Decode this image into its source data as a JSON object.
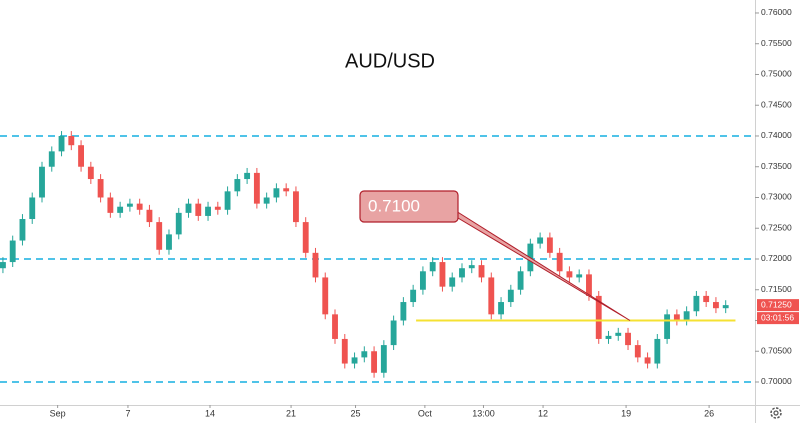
{
  "chart_data": {
    "type": "candlestick",
    "title": "AUD/USD",
    "open": [
      0.7185,
      0.7195,
      0.723,
      0.7265,
      0.73,
      0.735,
      0.7375,
      0.74,
      0.7385,
      0.735,
      0.733,
      0.73,
      0.7275,
      0.7285,
      0.729,
      0.728,
      0.726,
      0.7215,
      0.724,
      0.7275,
      0.729,
      0.727,
      0.7285,
      0.728,
      0.731,
      0.733,
      0.734,
      0.729,
      0.73,
      0.7315,
      0.731,
      0.726,
      0.721,
      0.717,
      0.711,
      0.707,
      0.703,
      0.704,
      0.705,
      0.7015,
      0.706,
      0.71,
      0.713,
      0.715,
      0.718,
      0.7195,
      0.7155,
      0.717,
      0.7185,
      0.719,
      0.717,
      0.711,
      0.713,
      0.715,
      0.718,
      0.7225,
      0.7235,
      0.721,
      0.718,
      0.717,
      0.7175,
      0.714,
      0.707,
      0.7075,
      0.708,
      0.706,
      0.704,
      0.703,
      0.707,
      0.711,
      0.71,
      0.7115,
      0.714,
      0.713,
      0.712
    ],
    "high": [
      0.7203,
      0.7238,
      0.7273,
      0.7308,
      0.7358,
      0.7383,
      0.7408,
      0.7408,
      0.7393,
      0.7358,
      0.7338,
      0.7308,
      0.7293,
      0.7298,
      0.7298,
      0.7288,
      0.7268,
      0.7248,
      0.7283,
      0.7298,
      0.7298,
      0.7293,
      0.7293,
      0.7318,
      0.7338,
      0.7348,
      0.7348,
      0.7308,
      0.7323,
      0.7323,
      0.7318,
      0.7268,
      0.7218,
      0.7178,
      0.7118,
      0.7078,
      0.7048,
      0.7058,
      0.7058,
      0.7068,
      0.7108,
      0.7138,
      0.7158,
      0.7188,
      0.7203,
      0.7203,
      0.7178,
      0.7193,
      0.7198,
      0.7198,
      0.7178,
      0.7138,
      0.7158,
      0.7188,
      0.7233,
      0.7243,
      0.7243,
      0.7218,
      0.7188,
      0.7183,
      0.7183,
      0.7148,
      0.7083,
      0.7088,
      0.7088,
      0.7068,
      0.7048,
      0.7078,
      0.7118,
      0.7118,
      0.7123,
      0.7148,
      0.7148,
      0.7138,
      0.7133
    ],
    "low": [
      0.7177,
      0.7187,
      0.7222,
      0.7257,
      0.7292,
      0.7342,
      0.7367,
      0.7377,
      0.7342,
      0.7322,
      0.7292,
      0.7267,
      0.7267,
      0.7277,
      0.7272,
      0.7252,
      0.7207,
      0.7207,
      0.7232,
      0.7267,
      0.7262,
      0.7262,
      0.7272,
      0.7272,
      0.7302,
      0.7322,
      0.7282,
      0.7282,
      0.7292,
      0.7302,
      0.7252,
      0.7202,
      0.7162,
      0.7102,
      0.7062,
      0.7022,
      0.7022,
      0.7032,
      0.7007,
      0.7007,
      0.7052,
      0.7092,
      0.7122,
      0.7142,
      0.7172,
      0.7147,
      0.7147,
      0.7162,
      0.7177,
      0.7162,
      0.7102,
      0.7102,
      0.7122,
      0.7142,
      0.7172,
      0.7217,
      0.7202,
      0.7172,
      0.7162,
      0.7162,
      0.7132,
      0.7062,
      0.7062,
      0.7067,
      0.7052,
      0.7032,
      0.7022,
      0.7022,
      0.7062,
      0.7092,
      0.7092,
      0.7107,
      0.7122,
      0.7112,
      0.7112
    ],
    "close": [
      0.7195,
      0.723,
      0.7265,
      0.73,
      0.735,
      0.7375,
      0.74,
      0.7385,
      0.735,
      0.733,
      0.73,
      0.7275,
      0.7285,
      0.729,
      0.728,
      0.726,
      0.7215,
      0.724,
      0.7275,
      0.729,
      0.727,
      0.7285,
      0.728,
      0.731,
      0.733,
      0.734,
      0.729,
      0.73,
      0.7315,
      0.731,
      0.726,
      0.721,
      0.717,
      0.711,
      0.707,
      0.703,
      0.704,
      0.705,
      0.7015,
      0.706,
      0.71,
      0.713,
      0.715,
      0.718,
      0.7195,
      0.7155,
      0.717,
      0.7185,
      0.719,
      0.717,
      0.711,
      0.713,
      0.715,
      0.718,
      0.7225,
      0.7235,
      0.721,
      0.718,
      0.717,
      0.7175,
      0.714,
      0.707,
      0.7075,
      0.708,
      0.706,
      0.704,
      0.703,
      0.707,
      0.711,
      0.71,
      0.7115,
      0.714,
      0.713,
      0.712,
      0.7125
    ],
    "up_color": "#26a69a",
    "down_color": "#ef5350",
    "xlim": [
      -0.3,
      77
    ],
    "xticks": [
      {
        "value": 5.6,
        "label": "Sep"
      },
      {
        "value": 12.8,
        "label": "7"
      },
      {
        "value": 21.2,
        "label": "14"
      },
      {
        "value": 29.5,
        "label": "21"
      },
      {
        "value": 36.1,
        "label": "25"
      },
      {
        "value": 43.2,
        "label": "Oct"
      },
      {
        "value": 49.2,
        "label": "13:00"
      },
      {
        "value": 55.3,
        "label": "12"
      },
      {
        "value": 63.8,
        "label": "19"
      },
      {
        "value": 72.3,
        "label": "26"
      }
    ],
    "ylim": [
      0.69626,
      0.76211
    ],
    "yticks": [
      {
        "value": 0.7,
        "label": "0.70000"
      },
      {
        "value": 0.705,
        "label": "0.70500"
      },
      {
        "value": 0.71,
        "label": "0.71000"
      },
      {
        "value": 0.715,
        "label": "0.71500"
      },
      {
        "value": 0.72,
        "label": "0.72000"
      },
      {
        "value": 0.725,
        "label": "0.72500"
      },
      {
        "value": 0.73,
        "label": "0.73000"
      },
      {
        "value": 0.735,
        "label": "0.73500"
      },
      {
        "value": 0.74,
        "label": "0.74000"
      },
      {
        "value": 0.745,
        "label": "0.74500"
      },
      {
        "value": 0.75,
        "label": "0.75000"
      },
      {
        "value": 0.755,
        "label": "0.75500"
      },
      {
        "value": 0.76,
        "label": "0.76000"
      }
    ],
    "levels": [
      0.74,
      0.72,
      0.7
    ],
    "level_color": "#4fc3e8",
    "support": {
      "value": 0.71,
      "from": 42.3,
      "to": 75.0,
      "color": "#f5e132"
    },
    "annotation": {
      "label": "0.7100",
      "x": 64.2,
      "y": 0.71
    },
    "last_price": {
      "value": 0.7125,
      "label": "0.71250"
    },
    "countdown": "03:01:56"
  }
}
